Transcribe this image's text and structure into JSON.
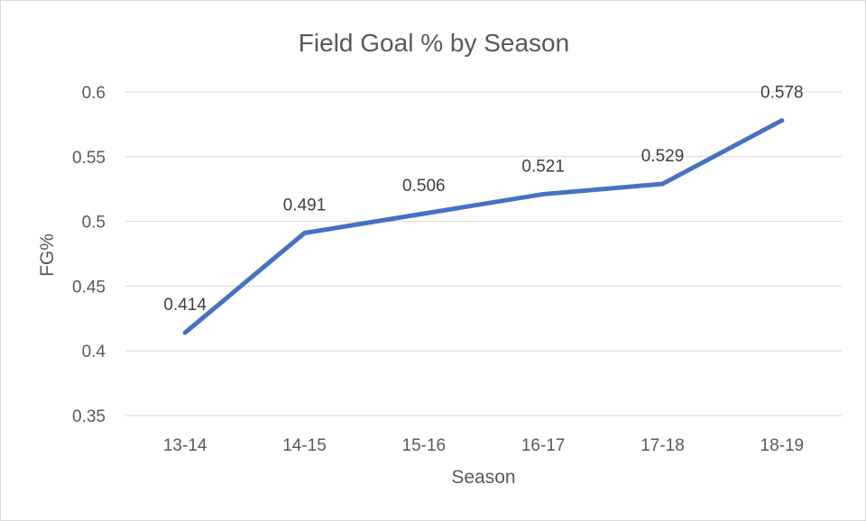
{
  "chart_data": {
    "type": "line",
    "title": "Field Goal % by Season",
    "xlabel": "Season",
    "ylabel": "FG%",
    "categories": [
      "13-14",
      "14-15",
      "15-16",
      "16-17",
      "17-18",
      "18-19"
    ],
    "series": [
      {
        "values": [
          0.414,
          0.491,
          0.506,
          0.521,
          0.529,
          0.578
        ]
      }
    ],
    "data_labels": [
      "0.414",
      "0.491",
      "0.506",
      "0.521",
      "0.529",
      "0.578"
    ],
    "ylim": [
      0.35,
      0.6
    ],
    "yticks": [
      0.35,
      0.4,
      0.45,
      0.5,
      0.55,
      0.6
    ],
    "ytick_labels": [
      "0.35",
      "0.4",
      "0.45",
      "0.5",
      "0.55",
      "0.6"
    ],
    "grid": true,
    "legend": "none",
    "line_color": "#4472C4"
  }
}
